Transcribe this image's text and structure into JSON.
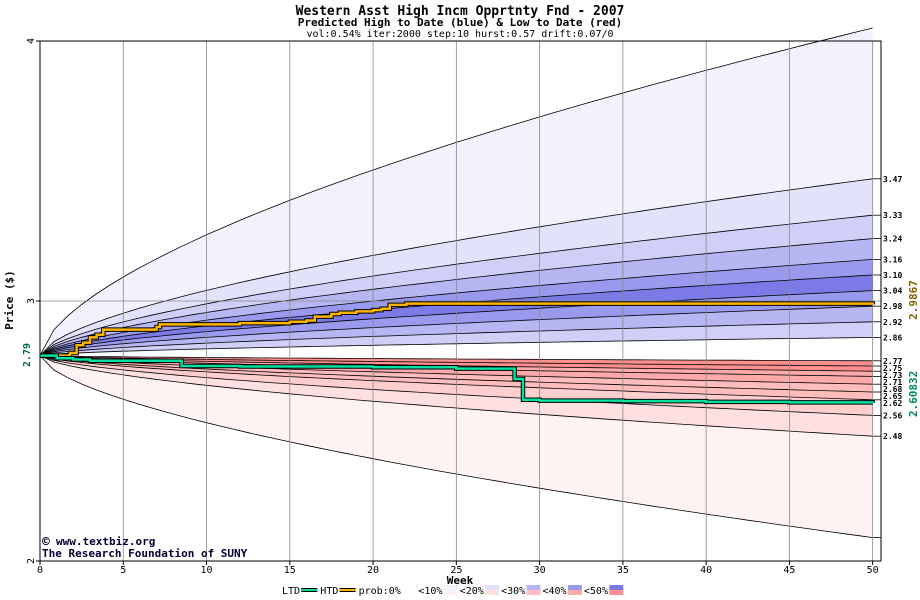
{
  "header": {
    "title": "Western Asst High Incm Opprtnty Fnd - 2007",
    "subtitle": "Predicted High to Date (blue) &  Low to Date (red)",
    "params": "vol:0.54% iter:2000 step:10 hurst:0.57 drift:0.07/0"
  },
  "credit": {
    "site": "www.textbiz.org",
    "org": "The Research Foundation of SUNY"
  },
  "colors": {
    "htd_line": "#ffb400",
    "ltd_line": "#00e0a0",
    "blue_bands": [
      "#f2f2ff",
      "#e2e2fb",
      "#cfcff7",
      "#b6b6f3",
      "#9999ee",
      "#7b7be8"
    ],
    "red_bands": [
      "#fff2f2",
      "#ffe0e0",
      "#ffcfcf",
      "#ffbdbd",
      "#ffaaaa",
      "#ff9090"
    ]
  },
  "chart_data": {
    "type": "area",
    "xlabel": "Week",
    "ylabel": "Price ($)",
    "xlim": [
      0,
      50.5
    ],
    "ylim": [
      2,
      4
    ],
    "x_ticks": [
      0,
      5,
      10,
      15,
      20,
      25,
      30,
      35,
      40,
      45,
      50
    ],
    "y_ticks": [
      "2",
      "3",
      "4"
    ],
    "start_price": 2.79,
    "start_label": "2.79",
    "horizon_week": 50,
    "htd_final_label": "2.9867",
    "ltd_final_label": "2.60832",
    "blue_percentile_ends": [
      3.47,
      3.33,
      3.24,
      3.16,
      3.1,
      3.04,
      2.98,
      2.92,
      2.86
    ],
    "blue_outer_end": 4.05,
    "red_percentile_ends": [
      2.77,
      2.75,
      2.73,
      2.71,
      2.68,
      2.65,
      2.62,
      2.56,
      2.48
    ],
    "red_outer_end": 2.09,
    "right_labels": [
      "3.47",
      "3.33",
      "3.24",
      "3.16",
      "3.10",
      "3.04",
      "2.98",
      "2.92",
      "2.86",
      "2.77",
      "2.75",
      "2.73",
      "2.71",
      "2.68",
      "2.65",
      "2.62",
      "2.56",
      "2.48"
    ],
    "series": [
      {
        "name": "HTD",
        "x": [
          0,
          1.4,
          1.8,
          2.2,
          2.6,
          3.0,
          3.4,
          3.8,
          5,
          6,
          7,
          7.2,
          12,
          15,
          16,
          16.5,
          17.5,
          18,
          19,
          20,
          20.5,
          21,
          22,
          25,
          28,
          35,
          40,
          50
        ],
        "y": [
          2.79,
          2.79,
          2.8,
          2.83,
          2.84,
          2.86,
          2.87,
          2.89,
          2.89,
          2.89,
          2.9,
          2.91,
          2.915,
          2.92,
          2.925,
          2.94,
          2.95,
          2.955,
          2.96,
          2.965,
          2.97,
          2.985,
          2.99,
          2.99,
          2.99,
          2.99,
          2.99,
          2.9867
        ]
      },
      {
        "name": "LTD",
        "x": [
          0,
          1.0,
          2.0,
          3.0,
          5,
          8.3,
          8.5,
          12,
          15,
          20,
          25,
          28,
          28.5,
          29,
          30,
          35,
          40,
          45,
          50
        ],
        "y": [
          2.79,
          2.78,
          2.775,
          2.77,
          2.77,
          2.77,
          2.75,
          2.748,
          2.748,
          2.745,
          2.74,
          2.74,
          2.7,
          2.62,
          2.617,
          2.615,
          2.612,
          2.61,
          2.60832
        ]
      }
    ],
    "legend": [
      {
        "key": "ltd",
        "label": "LTD"
      },
      {
        "key": "htd",
        "label": "HTD"
      },
      {
        "key": "prob",
        "label": "prob:0%"
      },
      {
        "key": "p10",
        "label": "<10%"
      },
      {
        "key": "p20",
        "label": "<20%"
      },
      {
        "key": "p30",
        "label": "<30%"
      },
      {
        "key": "p40",
        "label": "<40%"
      },
      {
        "key": "p50",
        "label": "<50%"
      }
    ]
  }
}
